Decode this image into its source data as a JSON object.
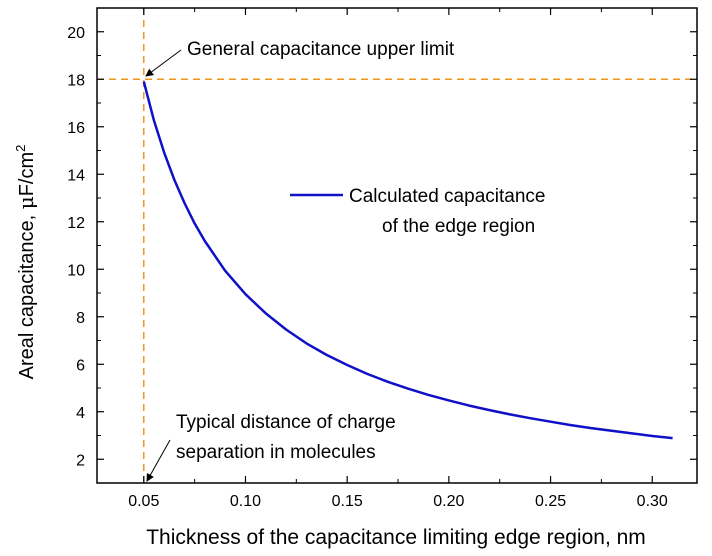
{
  "chart_data": {
    "type": "line",
    "title": "",
    "xlabel": "Thickness of the capacitance limiting edge region, nm",
    "ylabel_main": "Areal capacitance, ",
    "ylabel_mu": "μ",
    "ylabel_unit": "F/cm",
    "ylabel_sup": "2",
    "xlim": [
      0.027,
      0.322
    ],
    "ylim": [
      1.0,
      21.0
    ],
    "xticks": [
      0.05,
      0.1,
      0.15,
      0.2,
      0.25,
      0.3
    ],
    "xtick_labels": [
      "0.05",
      "0.10",
      "0.15",
      "0.20",
      "0.25",
      "0.30"
    ],
    "yticks": [
      2,
      4,
      6,
      8,
      10,
      12,
      14,
      16,
      18,
      20
    ],
    "ytick_labels": [
      "2",
      "4",
      "6",
      "8",
      "10",
      "12",
      "14",
      "16",
      "18",
      "20"
    ],
    "grid": false,
    "series": [
      {
        "name": "Calculated capacitance of the edge region",
        "color": "#1010c8",
        "x": [
          0.05,
          0.055,
          0.06,
          0.065,
          0.07,
          0.075,
          0.08,
          0.09,
          0.1,
          0.11,
          0.12,
          0.13,
          0.14,
          0.15,
          0.16,
          0.17,
          0.18,
          0.19,
          0.2,
          0.21,
          0.22,
          0.23,
          0.24,
          0.25,
          0.26,
          0.27,
          0.28,
          0.29,
          0.3,
          0.31
        ],
        "y": [
          17.9,
          16.27,
          14.92,
          13.77,
          12.79,
          11.93,
          11.19,
          9.94,
          8.95,
          8.14,
          7.46,
          6.88,
          6.39,
          5.97,
          5.59,
          5.26,
          4.97,
          4.71,
          4.48,
          4.26,
          4.07,
          3.89,
          3.73,
          3.58,
          3.44,
          3.31,
          3.2,
          3.09,
          2.98,
          2.89
        ]
      }
    ],
    "reference_lines": [
      {
        "orientation": "vertical",
        "value": 0.05,
        "color": "#f0961e"
      },
      {
        "orientation": "horizontal",
        "value": 18,
        "color": "#f0961e"
      }
    ],
    "annotations": [
      {
        "text": "General capacitance upper limit",
        "point": [
          0.05,
          18
        ]
      },
      {
        "lines": [
          "Typical distance of charge",
          "separation in molecules"
        ],
        "point": [
          0.05,
          1.0
        ]
      }
    ],
    "legend": {
      "lines": [
        "Calculated capacitance",
        "of the edge region"
      ],
      "placement": "center-right"
    }
  }
}
